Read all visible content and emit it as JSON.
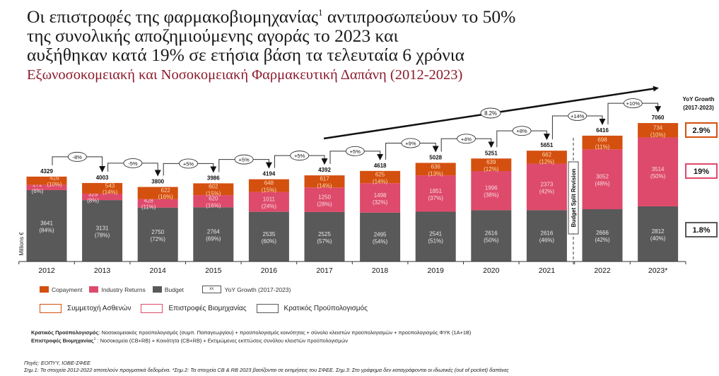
{
  "headline": {
    "line1_pre": "Οι επιστροφές της φαρμακοβιομηχανίας",
    "line1_sup": "1",
    "line1_post": " αντιπροσωπεύουν το 50%",
    "line2": "της συνολικής αποζημιούμενης αγοράς το 2023 και",
    "line3": "αυξήθηκαν κατά 19% σε ετήσια βάση τα τελευταία 6 χρόνια"
  },
  "subtitle": "Εξωνοσοκομειακή και Νοσοκομειακή Φαρμακευτική Δαπάνη (2012-2023)",
  "colors": {
    "copayment": "#d4500f",
    "industry_returns": "#de4a6b",
    "budget": "#595959",
    "title_red": "#8b1c2c"
  },
  "chart_data": {
    "type": "bar",
    "stacked": true,
    "title": "Εξωνοσοκομειακή και Νοσοκομειακή Φαρμακευτική Δαπάνη (2012-2023)",
    "ylabel": "Millions €",
    "xlabel": "",
    "categories": [
      "2012",
      "2013",
      "2014",
      "2015",
      "2016",
      "2017",
      "2018",
      "2019",
      "2020",
      "2021",
      "2022",
      "2023*"
    ],
    "series": [
      {
        "name": "Budget",
        "values": [
          3641,
          3131,
          2750,
          2764,
          2535,
          2525,
          2495,
          2541,
          2616,
          2616,
          2666,
          2812
        ],
        "pct": [
          "(84%)",
          "(78%)",
          "(72%)",
          "(69%)",
          "(60%)",
          "(57%)",
          "(54%)",
          "(51%)",
          "(50%)",
          "(46%)",
          "(42%)",
          "(40%)"
        ]
      },
      {
        "name": "Industry Returns",
        "values": [
          272,
          329,
          428,
          620,
          1011,
          1250,
          1498,
          1851,
          1996,
          2373,
          3052,
          3514
        ],
        "pct": [
          "(6%)",
          "(8%)",
          "(11%)",
          "(16%)",
          "(24%)",
          "(28%)",
          "(32%)",
          "(37%)",
          "(38%)",
          "(42%)",
          "(48%)",
          "(50%)"
        ]
      },
      {
        "name": "Copayment",
        "values": [
          416,
          543,
          622,
          602,
          648,
          617,
          625,
          636,
          639,
          662,
          698,
          734
        ],
        "pct": [
          "(10%)",
          "(14%)",
          "(16%)",
          "(15%)",
          "(15%)",
          "(14%)",
          "(14%)",
          "(13%)",
          "(12%)",
          "(12%)",
          "(11%)",
          "(10%)"
        ]
      }
    ],
    "totals": [
      4329,
      4003,
      3800,
      3986,
      4194,
      4392,
      4618,
      5028,
      5251,
      5651,
      6416,
      7060
    ],
    "yoy_labels": [
      "-8%",
      "-5%",
      "+5%",
      "+5%",
      "+5%",
      "+5%",
      "+9%",
      "+4%",
      "+8%",
      "+14%",
      "+10%"
    ],
    "cagr_label": "8.2%",
    "annotation_vertical": "Budget Split Revision",
    "yoy_growth_panel": {
      "title_line1": "YoY Growth",
      "title_line2": "(2017-2023)",
      "copayment": "2.9%",
      "industry_returns": "19%",
      "budget": "1.8%"
    },
    "ylim": [
      0,
      7500
    ],
    "grid": false,
    "legend_position": "bottom-left"
  },
  "legend": {
    "copayment": "Copayment",
    "industry_returns": "Industry Returns",
    "budget": "Budget",
    "yoy_box": "xx",
    "yoy_label": "YoY Growth  (2017-2023)",
    "gr_copayment": "Συμμετοχή Ασθενών",
    "gr_industry_returns": "Επιστροφές Βιομηχανίας",
    "gr_budget": "Κρατικός Προϋπολογισμός"
  },
  "notes": {
    "budget_term": "Κρατικός Προϋπολογισμός",
    "budget_def": ": Νοσοκομειακός προϋπολογισμός (συμπ. Παπαγεωργίου) + προϋπολογισμός κοινότητας + σύνολο κλειστών προϋπολογισμών + προϋπολογισμός ΦΥΚ (1Α+1Β)",
    "returns_term": "Επιστροφές Βιομηχανίας",
    "returns_sup": "1",
    "returns_def": " : Νοσοκομεία (CB+RB) + Κοινότητα (CB+RB) + Εκτιμώμενες εκπτώσεις συνόλου κλειστών προϋπολογισμών"
  },
  "sources": {
    "line1": "Πηγές: ΕΟΠΥΥ, ΙΟΒΕ-ΣΦΕΕ",
    "line2": "Σημ.1: Τα στοιχεία 2012-2022 αποτελούν πραγματικά δεδομένα. *Σημ.2: Τα στοιχεία CB & RB 2023 βασίζονται σε εκτιμήσεις του ΣΦΕΕ. Σημ.3: Στο γράφημα δεν καταγράφονται οι ιδιωτικές (out of pocket) δαπάνες"
  }
}
